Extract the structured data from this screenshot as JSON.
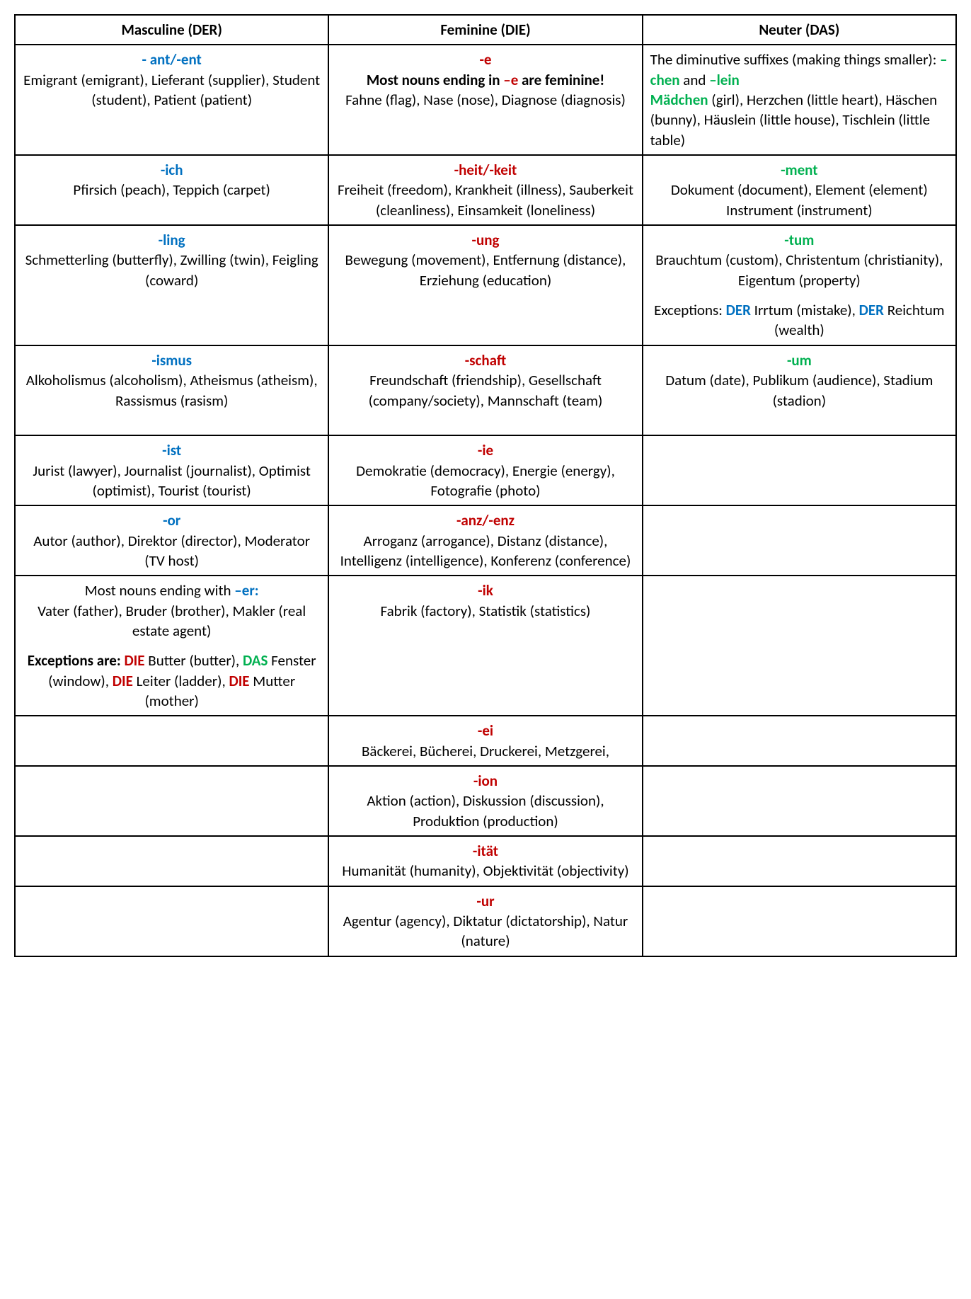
{
  "table": {
    "colors": {
      "blue": "#0070c0",
      "red": "#c00000",
      "green": "#00b050",
      "black": "#000000",
      "border": "#000000",
      "background": "#ffffff"
    },
    "font": {
      "family": "Calibri",
      "size_pt": 16,
      "header_weight": "bold"
    },
    "columns": [
      {
        "header": "Masculine (DER)",
        "suffix_color": "#0070c0"
      },
      {
        "header": "Feminine (DIE)",
        "suffix_color": "#c00000"
      },
      {
        "header": "Neuter (DAS)",
        "suffix_color": "#00b050"
      }
    ],
    "rows": [
      {
        "m": {
          "suffix": "- ant/-ent",
          "body": "Emigrant (emigrant), Lieferant (supplier), Student (student), Patient (patient)"
        },
        "f": {
          "suffix": "-e",
          "sub_pre": "Most nouns ending in ",
          "sub_mid": "–e",
          "sub_post": " are feminine!",
          "body": "Fahne (flag), Nase (nose), Diagnose (diagnosis)"
        },
        "n": {
          "intro_pre": "The diminutive suffixes (making things smaller): ",
          "chen": "–chen",
          "intro_mid": " and ",
          "lein": "–lein",
          "maedchen": "Mädchen",
          "body": " (girl), Herzchen (little heart), Häschen (bunny), Häuslein (little house), Tischlein (little table)"
        }
      },
      {
        "m": {
          "suffix": "-ich",
          "body": "Pfirsich (peach), Teppich (carpet)"
        },
        "f": {
          "suffix": "-heit/-keit",
          "body": "Freiheit (freedom), Krankheit (illness), Sauberkeit (cleanliness), Einsamkeit (loneliness)"
        },
        "n": {
          "suffix": "-ment",
          "body": "Dokument (document), Element (element) Instrument (instrument)"
        }
      },
      {
        "m": {
          "suffix": "-ling",
          "body": "Schmetterling (butterfly), Zwilling (twin), Feigling (coward)"
        },
        "f": {
          "suffix": "-ung",
          "body": "Bewegung (movement), Entfernung (distance), Erziehung (education)"
        },
        "n": {
          "suffix": "-tum",
          "body": "Brauchtum (custom), Christentum (christianity), Eigentum (property)",
          "exc_pre": "Exceptions: ",
          "der1": "DER",
          "exc_mid1": " Irrtum (mistake), ",
          "der2": "DER",
          "exc_post": " Reichtum (wealth)"
        }
      },
      {
        "m": {
          "suffix": "-ismus",
          "body": "Alkoholismus (alcoholism), Atheismus (atheism), Rassismus (rasism)"
        },
        "f": {
          "suffix": "-schaft",
          "body": "Freundschaft (friendship), Gesellschaft (company/society), Mannschaft (team)"
        },
        "n": {
          "suffix": "-um",
          "body": "Datum (date), Publikum (audience), Stadium (stadion)"
        }
      },
      {
        "m": {
          "suffix": "-ist",
          "body": "Jurist (lawyer), Journalist (journalist), Optimist (optimist), Tourist (tourist)"
        },
        "f": {
          "suffix": "-ie",
          "body": "Demokratie (democracy), Energie (energy), Fotografie (photo)"
        },
        "n": null
      },
      {
        "m": {
          "suffix": "-or",
          "body": "Autor (author), Direktor (director), Moderator (TV host)"
        },
        "f": {
          "suffix": "-anz/-enz",
          "body": "Arroganz (arrogance), Distanz (distance), Intelligenz (intelligence), Konferenz (conference)"
        },
        "n": null
      },
      {
        "m": {
          "intro_pre": "Most nouns ending with ",
          "er": "–er:",
          "body1": "Vater (father), Bruder (brother), Makler (real estate agent)",
          "exc_pre": "Exceptions are: ",
          "die1": "DIE",
          "exc1": " Butter (butter), ",
          "das1": "DAS",
          "exc2": " Fenster (window), ",
          "die2": "DIE",
          "exc3": " Leiter (ladder), ",
          "die3": "DIE",
          "exc4": " Mutter (mother)"
        },
        "f": {
          "suffix": "-ik",
          "body": "Fabrik (factory), Statistik (statistics)"
        },
        "n": null
      },
      {
        "m": null,
        "f": {
          "suffix": "-ei",
          "body": "Bäckerei, Bücherei, Druckerei, Metzgerei,"
        },
        "n": null
      },
      {
        "m": null,
        "f": {
          "suffix": "-ion",
          "body": "Aktion (action), Diskussion (discussion), Produktion (production)"
        },
        "n": null
      },
      {
        "m": null,
        "f": {
          "suffix": "-ität",
          "body": "Humanität (humanity), Objektivität (objectivity)"
        },
        "n": null
      },
      {
        "m": null,
        "f": {
          "suffix": "-ur",
          "body": "Agentur (agency), Diktatur (dictatorship), Natur (nature)"
        },
        "n": null
      }
    ]
  }
}
